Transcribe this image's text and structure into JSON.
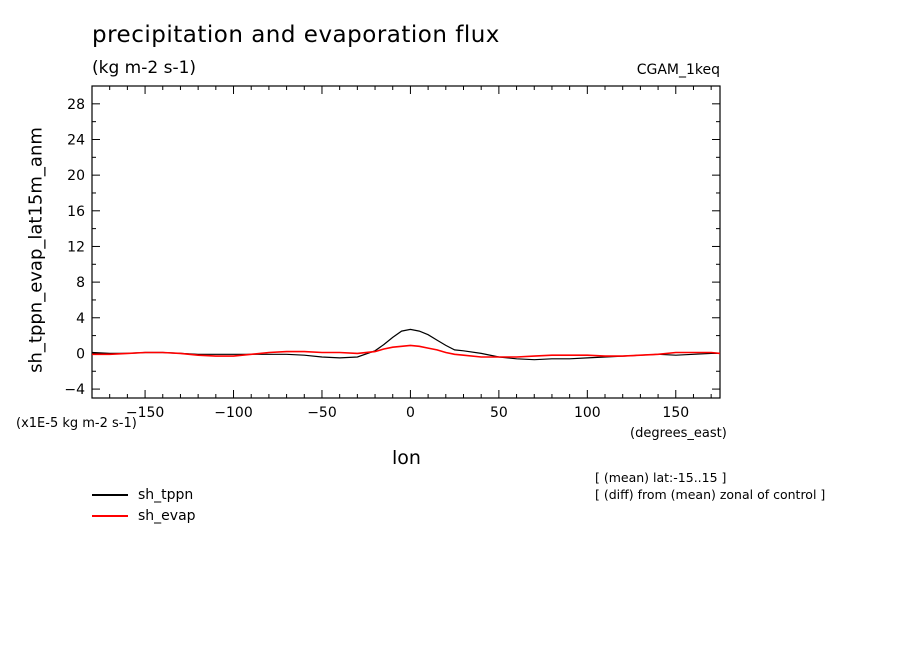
{
  "header": {
    "title": "precipitation and evaporation flux",
    "units": "(kg m-2 s-1)",
    "run": "CGAM_1keq"
  },
  "notes": {
    "scale": "(x1E-5 kg m-2 s-1)",
    "x_units": "(degrees_east)",
    "averaging": "[ (mean) lat:-15..15 ]",
    "difference": "[ (diff) from (mean) zonal of control ]"
  },
  "chart_data": {
    "type": "line",
    "xlabel": "lon",
    "ylabel": "sh_tppn_evap_lat15m_anm",
    "xlim": [
      -180,
      175
    ],
    "ylim": [
      -5,
      30
    ],
    "xticks": [
      -150,
      -100,
      -50,
      0,
      50,
      100,
      150
    ],
    "xtick_labels": [
      "-150",
      "-100",
      "-50",
      "0",
      "50",
      "100",
      "150"
    ],
    "yticks": [
      -4,
      0,
      4,
      8,
      12,
      16,
      20,
      24,
      28
    ],
    "ytick_labels": [
      "-4",
      "0",
      "4",
      "8",
      "12",
      "16",
      "20",
      "24",
      "28"
    ],
    "grid": false,
    "legend_position": "below-left",
    "x": [
      -180,
      -170,
      -160,
      -150,
      -140,
      -130,
      -120,
      -110,
      -100,
      -90,
      -80,
      -70,
      -60,
      -50,
      -40,
      -30,
      -20,
      -15,
      -10,
      -5,
      0,
      5,
      10,
      15,
      20,
      25,
      30,
      40,
      50,
      60,
      70,
      80,
      90,
      100,
      110,
      120,
      130,
      140,
      150,
      160,
      170,
      175
    ],
    "series": [
      {
        "name": "sh_tppn",
        "color": "#000000",
        "values": [
          0.1,
          0.0,
          0.0,
          0.1,
          0.1,
          0.0,
          -0.1,
          -0.1,
          -0.1,
          -0.1,
          -0.1,
          -0.1,
          -0.2,
          -0.4,
          -0.5,
          -0.4,
          0.3,
          1.0,
          1.8,
          2.5,
          2.7,
          2.5,
          2.1,
          1.5,
          0.9,
          0.4,
          0.3,
          0.0,
          -0.4,
          -0.6,
          -0.7,
          -0.6,
          -0.6,
          -0.5,
          -0.4,
          -0.3,
          -0.2,
          -0.1,
          -0.2,
          -0.1,
          0.0,
          0.0
        ]
      },
      {
        "name": "sh_evap",
        "color": "#ff0000",
        "values": [
          -0.1,
          -0.1,
          0.0,
          0.1,
          0.1,
          0.0,
          -0.2,
          -0.3,
          -0.3,
          -0.1,
          0.1,
          0.2,
          0.2,
          0.1,
          0.1,
          0.0,
          0.2,
          0.5,
          0.7,
          0.8,
          0.9,
          0.8,
          0.6,
          0.4,
          0.1,
          -0.1,
          -0.2,
          -0.4,
          -0.4,
          -0.4,
          -0.3,
          -0.2,
          -0.2,
          -0.2,
          -0.3,
          -0.3,
          -0.2,
          -0.1,
          0.1,
          0.1,
          0.1,
          0.0
        ]
      }
    ]
  }
}
